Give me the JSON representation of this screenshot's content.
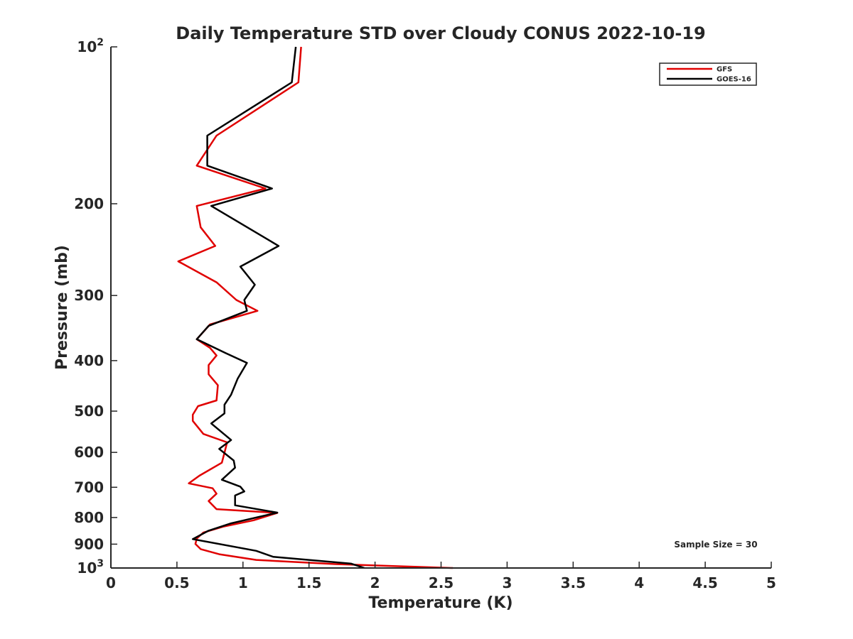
{
  "chart_data": {
    "type": "line",
    "title": "Daily Temperature STD over Cloudy CONUS 2022-10-19",
    "xlabel": "Temperature (K)",
    "ylabel": "Pressure (mb)",
    "xlim": [
      0,
      5
    ],
    "ylim": [
      100,
      1000
    ],
    "y_scale": "log",
    "y_reversed": true,
    "x_ticks": [
      "0",
      "0.5",
      "1",
      "1.5",
      "2",
      "2.5",
      "3",
      "3.5",
      "4",
      "4.5",
      "5"
    ],
    "y_ticks": [
      {
        "value": 100,
        "base": "10",
        "exp": "2"
      },
      {
        "value": 200,
        "label": "200"
      },
      {
        "value": 300,
        "label": "300"
      },
      {
        "value": 400,
        "label": "400"
      },
      {
        "value": 500,
        "label": "500"
      },
      {
        "value": 600,
        "label": "600"
      },
      {
        "value": 700,
        "label": "700"
      },
      {
        "value": 800,
        "label": "800"
      },
      {
        "value": 900,
        "label": "900"
      },
      {
        "value": 1000,
        "base": "10",
        "exp": "3"
      }
    ],
    "grid": false,
    "legend_position": "top-right",
    "annotation": "Sample Size = 30",
    "series": [
      {
        "name": "GFS",
        "color": "#e00000",
        "points": [
          [
            1.44,
            100
          ],
          [
            1.42,
            117
          ],
          [
            0.8,
            148
          ],
          [
            0.65,
            169
          ],
          [
            1.17,
            187
          ],
          [
            0.65,
            202
          ],
          [
            0.68,
            222
          ],
          [
            0.79,
            241
          ],
          [
            0.51,
            258
          ],
          [
            0.8,
            283
          ],
          [
            0.95,
            306
          ],
          [
            1.11,
            321
          ],
          [
            0.75,
            341
          ],
          [
            0.65,
            364
          ],
          [
            0.75,
            378
          ],
          [
            0.8,
            391
          ],
          [
            0.74,
            408
          ],
          [
            0.74,
            425
          ],
          [
            0.81,
            446
          ],
          [
            0.8,
            477
          ],
          [
            0.66,
            489
          ],
          [
            0.62,
            508
          ],
          [
            0.62,
            522
          ],
          [
            0.7,
            553
          ],
          [
            0.88,
            574
          ],
          [
            0.86,
            601
          ],
          [
            0.84,
            628
          ],
          [
            0.67,
            665
          ],
          [
            0.59,
            688
          ],
          [
            0.77,
            703
          ],
          [
            0.8,
            720
          ],
          [
            0.74,
            744
          ],
          [
            0.8,
            771
          ],
          [
            1.26,
            784
          ],
          [
            1.08,
            810
          ],
          [
            0.85,
            833
          ],
          [
            0.7,
            855
          ],
          [
            0.65,
            878
          ],
          [
            0.64,
            899
          ],
          [
            0.68,
            920
          ],
          [
            0.82,
            941
          ],
          [
            1.1,
            965
          ],
          [
            1.7,
            983
          ],
          [
            2.59,
            1000
          ]
        ]
      },
      {
        "name": "GOES-16",
        "color": "#000000",
        "points": [
          [
            1.4,
            100
          ],
          [
            1.37,
            117
          ],
          [
            0.73,
            148
          ],
          [
            0.73,
            169
          ],
          [
            1.22,
            187
          ],
          [
            0.76,
            202
          ],
          [
            1.27,
            241
          ],
          [
            0.98,
            264
          ],
          [
            1.09,
            286
          ],
          [
            1.01,
            306
          ],
          [
            1.03,
            321
          ],
          [
            0.74,
            343
          ],
          [
            0.65,
            364
          ],
          [
            0.87,
            387
          ],
          [
            1.03,
            404
          ],
          [
            0.96,
            433
          ],
          [
            0.91,
            465
          ],
          [
            0.86,
            486
          ],
          [
            0.86,
            505
          ],
          [
            0.76,
            528
          ],
          [
            0.91,
            568
          ],
          [
            0.82,
            591
          ],
          [
            0.93,
            622
          ],
          [
            0.94,
            642
          ],
          [
            0.84,
            677
          ],
          [
            0.98,
            698
          ],
          [
            1.01,
            713
          ],
          [
            0.94,
            726
          ],
          [
            0.94,
            758
          ],
          [
            1.26,
            783
          ],
          [
            0.91,
            821
          ],
          [
            0.74,
            848
          ],
          [
            0.62,
            880
          ],
          [
            1.1,
            927
          ],
          [
            1.23,
            952
          ],
          [
            1.82,
            981
          ],
          [
            1.92,
            1000
          ]
        ]
      }
    ]
  }
}
